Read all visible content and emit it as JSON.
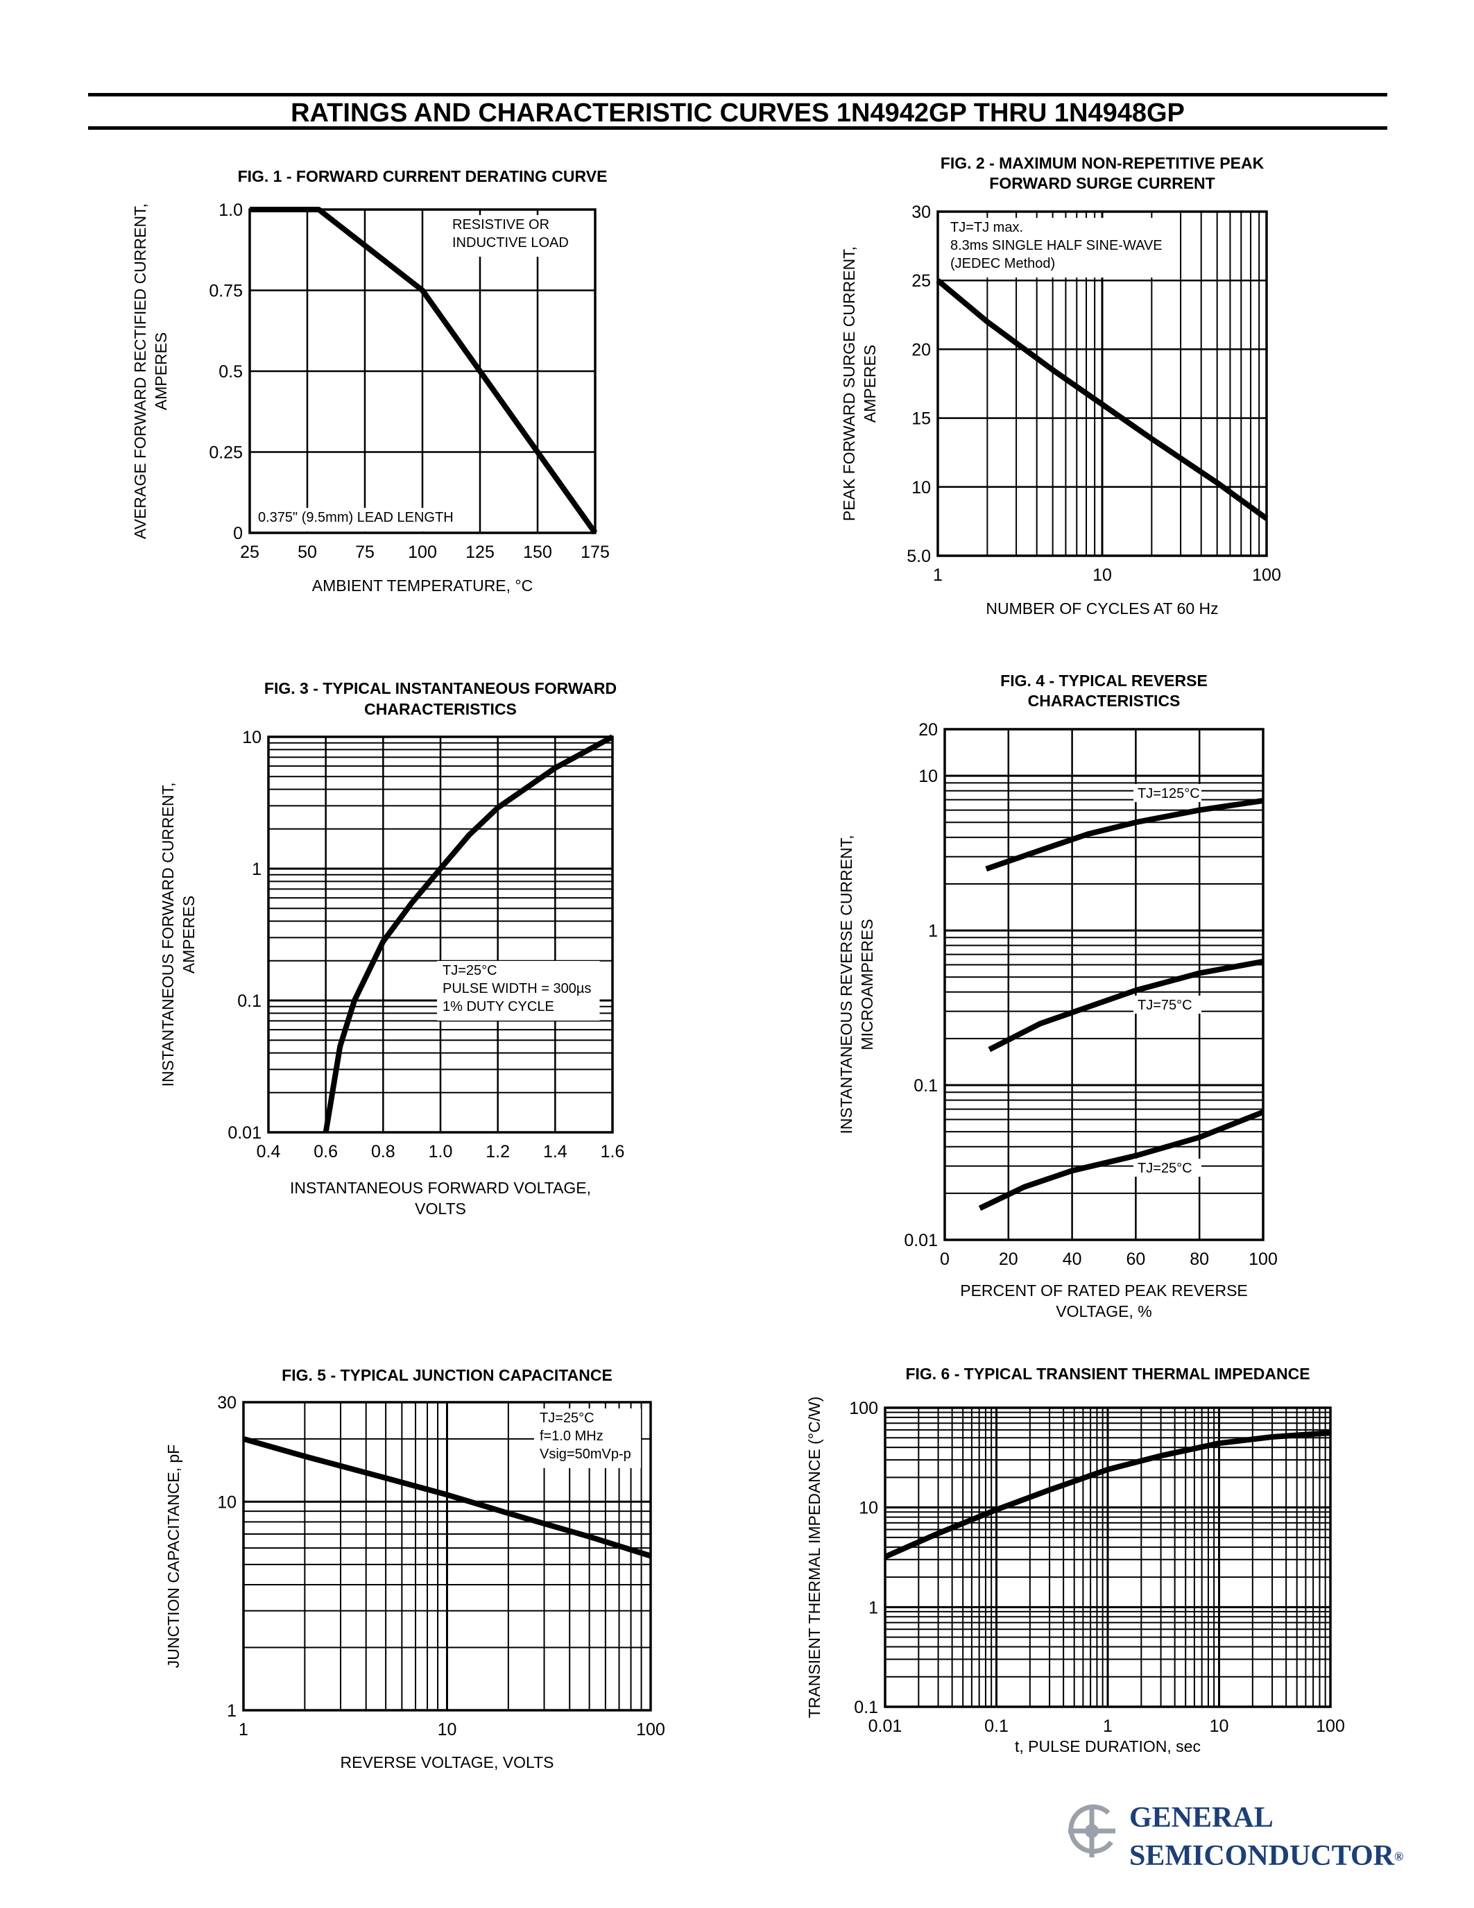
{
  "header": {
    "title": "RATINGS AND CHARACTERISTIC CURVES 1N4942GP THRU 1N4948GP"
  },
  "logo": {
    "line1": "General",
    "line2": "Semiconductor",
    "mark": "®"
  },
  "chart_data": [
    {
      "id": "fig1",
      "type": "line",
      "title": [
        "FIG. 1 -  FORWARD CURRENT DERATING CURVE"
      ],
      "xlabel": [
        "AMBIENT TEMPERATURE, °C"
      ],
      "ylabel": [
        "AVERAGE FORWARD RECTIFIED CURRENT,",
        "AMPERES"
      ],
      "xscale": "linear",
      "yscale": "linear",
      "xlim": [
        25,
        175
      ],
      "ylim": [
        0,
        1.0
      ],
      "xticks": [
        25,
        50,
        75,
        100,
        125,
        150,
        175
      ],
      "xtick_labels": [
        "25",
        "50",
        "75",
        "100",
        "125",
        "150",
        "175"
      ],
      "yticks": [
        0,
        0.25,
        0.5,
        0.75,
        1.0
      ],
      "ytick_labels": [
        "0",
        "0.25",
        "0.5",
        "0.75",
        "1.0"
      ],
      "grid": true,
      "annotations": [
        {
          "lines": [
            "RESISTIVE OR",
            "INDUCTIVE LOAD"
          ],
          "anchor": "top-right"
        },
        {
          "lines": [
            "0.375\" (9.5mm) LEAD LENGTH"
          ],
          "anchor": "bottom-left"
        }
      ],
      "series": [
        {
          "x": [
            25,
            55,
            100,
            125,
            150,
            175
          ],
          "y": [
            1.0,
            1.0,
            0.75,
            0.5,
            0.25,
            0
          ]
        }
      ]
    },
    {
      "id": "fig2",
      "type": "line",
      "title": [
        "FIG. 2 - MAXIMUM NON-REPETITIVE PEAK",
        "FORWARD SURGE CURRENT"
      ],
      "xlabel": [
        "NUMBER OF CYCLES AT 60 Hz"
      ],
      "ylabel": [
        "PEAK FORWARD SURGE CURRENT,",
        "AMPERES"
      ],
      "xscale": "log",
      "yscale": "linear",
      "xlim": [
        1,
        100
      ],
      "ylim": [
        5,
        30
      ],
      "xticks": [
        1,
        10,
        100
      ],
      "xtick_labels": [
        "1",
        "10",
        "100"
      ],
      "yticks": [
        5,
        10,
        15,
        20,
        25,
        30
      ],
      "ytick_labels": [
        "5.0",
        "10",
        "15",
        "20",
        "25",
        "30"
      ],
      "grid": true,
      "annotations": [
        {
          "lines": [
            "TJ=TJ max.",
            "8.3ms SINGLE HALF SINE-WAVE",
            "(JEDEC Method)"
          ],
          "anchor": "top-left"
        }
      ],
      "series": [
        {
          "x": [
            1,
            2,
            5,
            10,
            20,
            50,
            100
          ],
          "y": [
            25,
            22,
            18.5,
            16,
            13.5,
            10.3,
            7.7
          ]
        }
      ]
    },
    {
      "id": "fig3",
      "type": "line",
      "title": [
        "FIG. 3 - TYPICAL INSTANTANEOUS FORWARD",
        "CHARACTERISTICS"
      ],
      "xlabel": [
        "INSTANTANEOUS FORWARD VOLTAGE,",
        "VOLTS"
      ],
      "ylabel": [
        "INSTANTANEOUS FORWARD CURRENT,",
        "AMPERES"
      ],
      "xscale": "linear",
      "yscale": "log",
      "xlim": [
        0.4,
        1.6
      ],
      "ylim": [
        0.01,
        10
      ],
      "xticks": [
        0.4,
        0.6,
        0.8,
        1.0,
        1.2,
        1.4,
        1.6
      ],
      "xtick_labels": [
        "0.4",
        "0.6",
        "0.8",
        "1.0",
        "1.2",
        "1.4",
        "1.6"
      ],
      "yticks": [
        0.01,
        0.1,
        1,
        10
      ],
      "ytick_labels": [
        "0.01",
        "0.1",
        "1",
        "10"
      ],
      "grid": true,
      "annotations": [
        {
          "lines": [
            "TJ=25°C",
            "PULSE WIDTH = 300µs",
            "1% DUTY CYCLE"
          ],
          "anchor": "lower-right"
        }
      ],
      "series": [
        {
          "x": [
            0.6,
            0.65,
            0.7,
            0.8,
            0.9,
            1.0,
            1.1,
            1.2,
            1.4,
            1.6
          ],
          "y": [
            0.01,
            0.045,
            0.1,
            0.28,
            0.55,
            1.0,
            1.8,
            2.9,
            5.8,
            10
          ]
        }
      ]
    },
    {
      "id": "fig4",
      "type": "line",
      "title": [
        "FIG. 4 - TYPICAL REVERSE",
        "CHARACTERISTICS"
      ],
      "xlabel": [
        "PERCENT OF RATED PEAK REVERSE",
        "VOLTAGE, %"
      ],
      "ylabel": [
        "INSTANTANEOUS REVERSE  CURRENT,",
        "MICROAMPERES"
      ],
      "xscale": "linear",
      "yscale": "log",
      "xlim": [
        0,
        100
      ],
      "ylim": [
        0.01,
        20
      ],
      "xticks": [
        0,
        20,
        40,
        60,
        80,
        100
      ],
      "xtick_labels": [
        "0",
        "20",
        "40",
        "60",
        "80",
        "100"
      ],
      "yticks": [
        0.01,
        0.1,
        1,
        10,
        20
      ],
      "ytick_labels": [
        "0.01",
        "0.1",
        "1",
        "10",
        "20"
      ],
      "grid": true,
      "series": [
        {
          "name": "TJ=125°C",
          "x": [
            13,
            30,
            45,
            60,
            80,
            100
          ],
          "y": [
            2.5,
            3.3,
            4.2,
            5.0,
            6.0,
            6.9
          ]
        },
        {
          "name": "TJ=75°C",
          "x": [
            14,
            30,
            45,
            60,
            80,
            100
          ],
          "y": [
            0.17,
            0.25,
            0.32,
            0.41,
            0.53,
            0.63
          ]
        },
        {
          "name": "TJ=25°C",
          "x": [
            11,
            25,
            40,
            60,
            80,
            100
          ],
          "y": [
            0.016,
            0.022,
            0.028,
            0.035,
            0.046,
            0.067
          ]
        }
      ]
    },
    {
      "id": "fig5",
      "type": "line",
      "title": [
        "FIG. 5 - TYPICAL JUNCTION CAPACITANCE"
      ],
      "xlabel": [
        "REVERSE VOLTAGE, VOLTS"
      ],
      "ylabel": [
        "JUNCTION CAPACITANCE, pF"
      ],
      "xscale": "log",
      "yscale": "log",
      "xlim": [
        1,
        100
      ],
      "ylim": [
        1,
        30
      ],
      "xticks": [
        1,
        10,
        100
      ],
      "xtick_labels": [
        "1",
        "10",
        "100"
      ],
      "yticks": [
        1,
        10,
        30
      ],
      "ytick_labels": [
        "1",
        "10",
        "30"
      ],
      "grid": true,
      "annotations": [
        {
          "lines": [
            "TJ=25°C",
            "f=1.0 MHz",
            "Vsig=50mVp-p"
          ],
          "anchor": "top-right"
        }
      ],
      "series": [
        {
          "x": [
            1,
            2,
            5,
            10,
            20,
            50,
            100
          ],
          "y": [
            20,
            16.5,
            13,
            10.8,
            8.8,
            6.8,
            5.5
          ]
        }
      ]
    },
    {
      "id": "fig6",
      "type": "line",
      "title": [
        "FIG. 6 - TYPICAL TRANSIENT THERMAL IMPEDANCE"
      ],
      "xlabel": [
        "t, PULSE DURATION, sec"
      ],
      "ylabel": [
        "TRANSIENT THERMAL IMPEDANCE (°C/W)"
      ],
      "xscale": "log",
      "yscale": "log",
      "xlim": [
        0.01,
        100
      ],
      "ylim": [
        0.1,
        100
      ],
      "xticks": [
        0.01,
        0.1,
        1,
        10,
        100
      ],
      "xtick_labels": [
        "0.01",
        "0.1",
        "1",
        "10",
        "100"
      ],
      "yticks": [
        0.1,
        1,
        10,
        100
      ],
      "ytick_labels": [
        "0.1",
        "1",
        "10",
        "100"
      ],
      "grid": true,
      "series": [
        {
          "x": [
            0.01,
            0.03,
            0.1,
            0.3,
            1,
            3,
            10,
            30,
            100
          ],
          "y": [
            3.2,
            5.5,
            9.5,
            15,
            24,
            33,
            44,
            51,
            56
          ]
        }
      ]
    }
  ]
}
